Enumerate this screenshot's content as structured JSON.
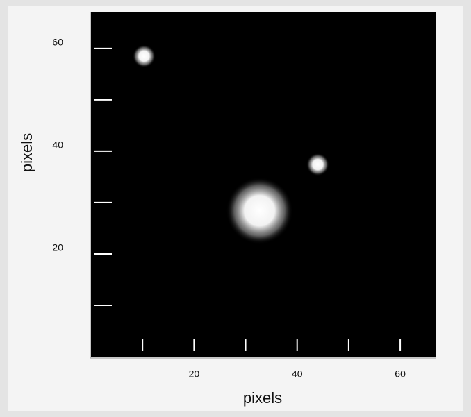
{
  "chart_data": {
    "type": "image",
    "xlabel": "pixels",
    "ylabel": "pixels",
    "xlim": [
      0,
      67
    ],
    "ylim": [
      0,
      67
    ],
    "xticks": [
      20,
      40,
      60
    ],
    "yticks": [
      20,
      40,
      60
    ],
    "xminor_ticks": [
      10,
      30,
      50
    ],
    "yminor_ticks": [
      10,
      30,
      50
    ],
    "sources": {
      "x": [
        10.3,
        44,
        32.7
      ],
      "y": [
        58.5,
        37.4,
        28.4
      ],
      "size": [
        2.2,
        2.2,
        6.5
      ]
    },
    "color": "#ffffff"
  }
}
